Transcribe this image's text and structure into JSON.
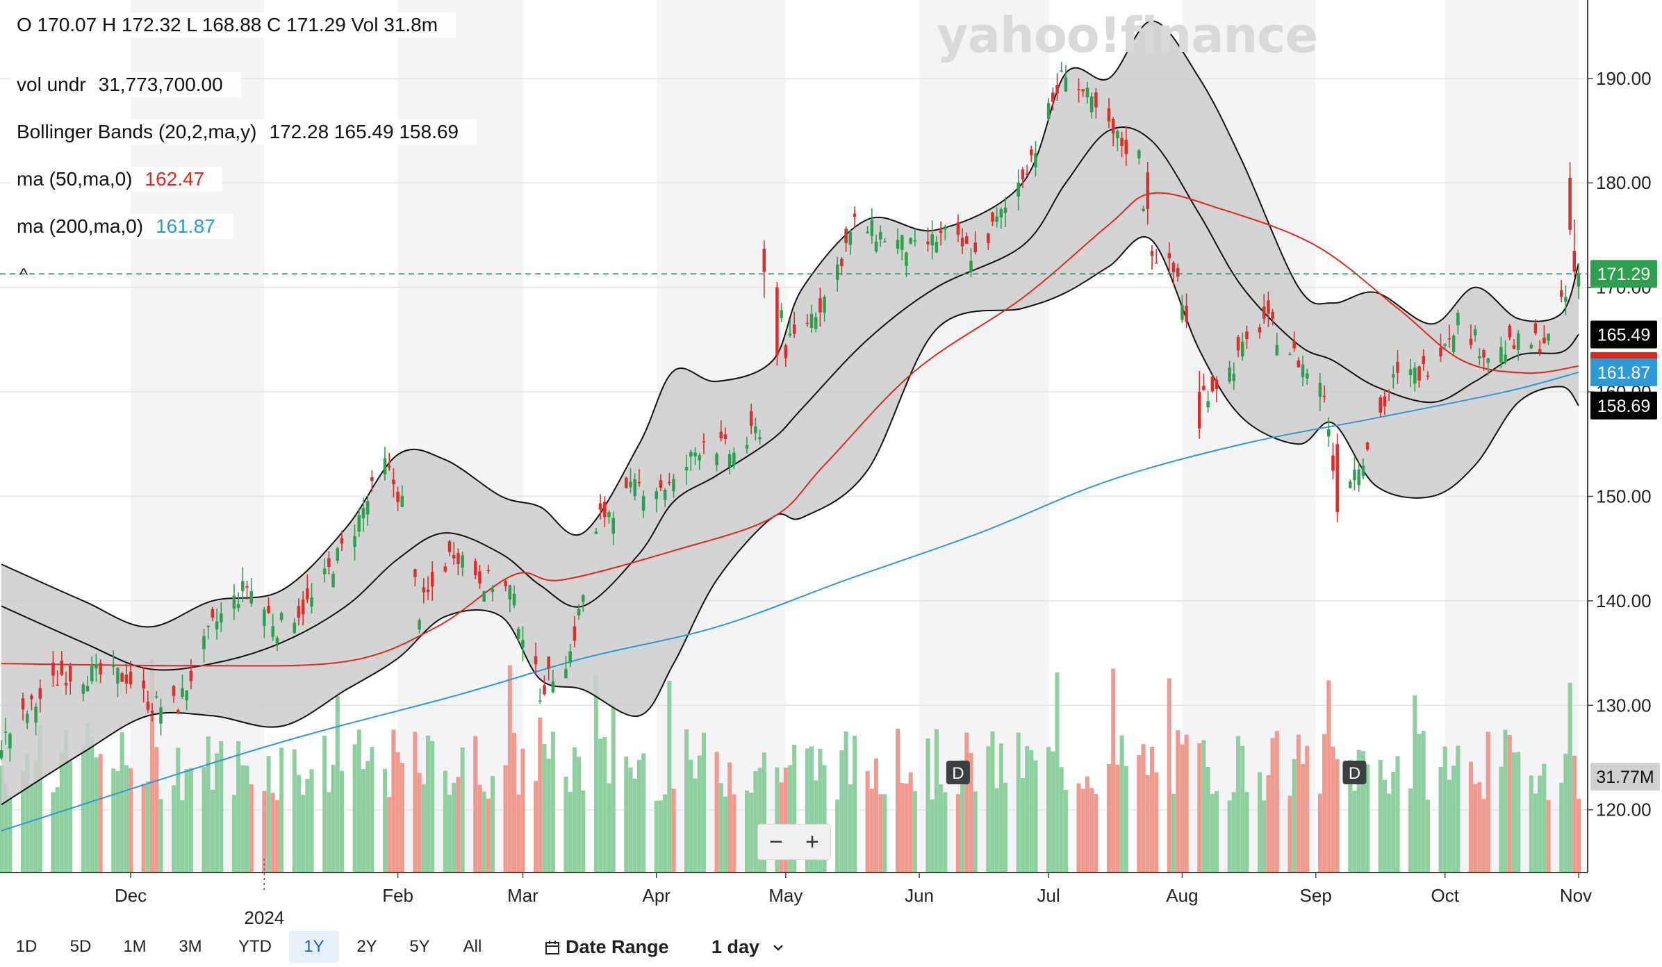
{
  "header": {
    "ohlc_text": "O 170.07   H 172.32   L 168.88   C 171.29   Vol 31.8m",
    "collapse_glyph": "^"
  },
  "legend": [
    {
      "label": "vol undr",
      "value": "31,773,700.00",
      "color": "#111111"
    },
    {
      "label": "Bollinger Bands (20,2,ma,y)",
      "value": "172.28 165.49 158.69",
      "color": "#111111"
    },
    {
      "label": "ma (50,ma,0)",
      "value": "162.47",
      "color": "#e0281e"
    },
    {
      "label": "ma (200,ma,0)",
      "value": "161.87",
      "color": "#2b9ad6"
    }
  ],
  "watermark": "yahoo!finance",
  "zoom": {
    "minus": "−",
    "plus": "+"
  },
  "toolbar": {
    "ranges": [
      "1D",
      "5D",
      "1M",
      "3M",
      "YTD",
      "1Y",
      "2Y",
      "5Y",
      "All"
    ],
    "active_range": "1Y",
    "date_range_label": "Date Range",
    "interval_label": "1 day",
    "calendar_icon": "calendar-icon",
    "chevron_icon": "chevron-down-icon"
  },
  "colors": {
    "up": "#2e9e4f",
    "down": "#d8312c",
    "up_vol": "#8fcf9f",
    "down_vol": "#ef9a8e",
    "band_fill": "#cdcdcd",
    "ma50": "#e0281e",
    "ma200": "#2b9ad6",
    "last_price_line": "#2e7d5b",
    "last_price_badge": "#2e9e4f"
  },
  "chart_data": {
    "type": "candlestick",
    "yaxis": {
      "ticks": [
        "120.00",
        "130.00",
        "140.00",
        "150.00",
        "160.00",
        "170.00",
        "180.00",
        "190.00"
      ],
      "ylim": [
        114,
        197.5
      ],
      "side": "right"
    },
    "xaxis": {
      "month_ticks": [
        "Dec",
        "Feb",
        "Mar",
        "Apr",
        "May",
        "Jun",
        "Jul",
        "Aug",
        "Sep",
        "Oct",
        "Nov"
      ],
      "year_tick": "2024",
      "range": [
        "2023-11-01",
        "2024-11-01"
      ]
    },
    "month_tick_dates": [
      "2023-12-01",
      "2024-02-01",
      "2024-03-01",
      "2024-04-01",
      "2024-05-01",
      "2024-06-01",
      "2024-07-01",
      "2024-08-01",
      "2024-09-01",
      "2024-10-01",
      "2024-11-01"
    ],
    "year_tick_date": "2024-01-01",
    "alt_shade_months": [
      "2023-12",
      "2024-02",
      "2024-04",
      "2024-06",
      "2024-08",
      "2024-10"
    ],
    "close_path": [
      [
        "2023-11-01",
        126.5
      ],
      [
        "2023-11-15",
        133.0
      ],
      [
        "2023-11-30",
        132.8
      ],
      [
        "2023-12-06",
        130.0
      ],
      [
        "2023-12-12",
        130.0
      ],
      [
        "2023-12-20",
        137.5
      ],
      [
        "2023-12-28",
        141.5
      ],
      [
        "2024-01-04",
        137.5
      ],
      [
        "2024-01-12",
        140.0
      ],
      [
        "2024-01-22",
        147.0
      ],
      [
        "2024-01-29",
        153.0
      ],
      [
        "2024-02-02",
        149.5
      ],
      [
        "2024-02-06",
        139.0
      ],
      [
        "2024-02-14",
        145.0
      ],
      [
        "2024-02-21",
        142.0
      ],
      [
        "2024-02-27",
        141.0
      ],
      [
        "2024-03-05",
        131.5
      ],
      [
        "2024-03-12",
        135.0
      ],
      [
        "2024-03-19",
        148.0
      ],
      [
        "2024-03-28",
        151.0
      ],
      [
        "2024-04-05",
        151.0
      ],
      [
        "2024-04-12",
        155.5
      ],
      [
        "2024-04-19",
        154.0
      ],
      [
        "2024-04-25",
        156.5
      ],
      [
        "2024-04-29",
        171.5
      ],
      [
        "2024-05-01",
        164.0
      ],
      [
        "2024-05-10",
        169.0
      ],
      [
        "2024-05-17",
        176.0
      ],
      [
        "2024-05-23",
        175.0
      ],
      [
        "2024-05-31",
        173.5
      ],
      [
        "2024-06-07",
        175.0
      ],
      [
        "2024-06-14",
        173.0
      ],
      [
        "2024-06-21",
        177.5
      ],
      [
        "2024-06-28",
        183.5
      ],
      [
        "2024-07-05",
        191.0
      ],
      [
        "2024-07-10",
        188.0
      ],
      [
        "2024-07-16",
        184.5
      ],
      [
        "2024-07-22",
        182.5
      ],
      [
        "2024-07-24",
        174.0
      ],
      [
        "2024-07-31",
        171.0
      ],
      [
        "2024-08-05",
        159.5
      ],
      [
        "2024-08-12",
        162.0
      ],
      [
        "2024-08-20",
        167.0
      ],
      [
        "2024-08-28",
        163.0
      ],
      [
        "2024-09-03",
        160.0
      ],
      [
        "2024-09-06",
        150.0
      ],
      [
        "2024-09-12",
        154.0
      ],
      [
        "2024-09-19",
        161.0
      ],
      [
        "2024-09-26",
        162.0
      ],
      [
        "2024-10-04",
        167.0
      ],
      [
        "2024-10-11",
        163.5
      ],
      [
        "2024-10-18",
        164.5
      ],
      [
        "2024-10-25",
        165.0
      ],
      [
        "2024-10-29",
        169.0
      ],
      [
        "2024-10-30",
        182.0
      ],
      [
        "2024-11-01",
        171.29
      ]
    ],
    "big_candles": [
      {
        "date": "2024-04-26",
        "o": 173.7,
        "h": 174.5,
        "l": 169.0,
        "c": 171.5
      },
      {
        "date": "2024-04-29",
        "o": 170.0,
        "h": 170.5,
        "l": 162.5,
        "c": 163.5
      },
      {
        "date": "2024-07-24",
        "o": 181.0,
        "h": 182.0,
        "l": 176.0,
        "c": 177.5
      },
      {
        "date": "2024-08-05",
        "o": 160.0,
        "h": 162.0,
        "l": 155.5,
        "c": 156.5
      },
      {
        "date": "2024-09-06",
        "o": 155.0,
        "h": 156.0,
        "l": 147.5,
        "c": 148.5
      },
      {
        "date": "2024-10-30",
        "o": 180.5,
        "h": 182.0,
        "l": 175.0,
        "c": 175.5
      },
      {
        "date": "2024-10-31",
        "o": 173.5,
        "h": 176.5,
        "l": 171.0,
        "c": 171.5
      },
      {
        "date": "2024-11-01",
        "o": 170.07,
        "h": 172.32,
        "l": 168.88,
        "c": 171.29
      }
    ],
    "bollinger_upper": [
      [
        "2023-11-01",
        143.5
      ],
      [
        "2023-11-20",
        140.0
      ],
      [
        "2023-12-05",
        137.5
      ],
      [
        "2023-12-20",
        140.0
      ],
      [
        "2024-01-05",
        141.0
      ],
      [
        "2024-01-20",
        147.0
      ],
      [
        "2024-02-01",
        154.0
      ],
      [
        "2024-02-12",
        153.5
      ],
      [
        "2024-02-25",
        150.0
      ],
      [
        "2024-03-05",
        149.0
      ],
      [
        "2024-03-15",
        146.5
      ],
      [
        "2024-03-28",
        155.0
      ],
      [
        "2024-04-05",
        162.0
      ],
      [
        "2024-04-15",
        161.0
      ],
      [
        "2024-04-28",
        163.0
      ],
      [
        "2024-05-05",
        170.0
      ],
      [
        "2024-05-20",
        176.5
      ],
      [
        "2024-06-05",
        175.5
      ],
      [
        "2024-06-25",
        180.0
      ],
      [
        "2024-07-05",
        190.5
      ],
      [
        "2024-07-15",
        190.0
      ],
      [
        "2024-07-25",
        195.5
      ],
      [
        "2024-08-05",
        190.0
      ],
      [
        "2024-08-15",
        182.0
      ],
      [
        "2024-08-28",
        170.0
      ],
      [
        "2024-09-05",
        168.5
      ],
      [
        "2024-09-15",
        169.5
      ],
      [
        "2024-09-28",
        166.5
      ],
      [
        "2024-10-08",
        170.0
      ],
      [
        "2024-10-18",
        167.0
      ],
      [
        "2024-10-28",
        167.5
      ],
      [
        "2024-11-01",
        172.28
      ]
    ],
    "bollinger_middle": [
      [
        "2023-11-01",
        139.5
      ],
      [
        "2023-11-20",
        136.0
      ],
      [
        "2023-12-05",
        133.5
      ],
      [
        "2023-12-20",
        134.0
      ],
      [
        "2024-01-05",
        136.0
      ],
      [
        "2024-01-20",
        139.5
      ],
      [
        "2024-02-01",
        144.0
      ],
      [
        "2024-02-12",
        146.5
      ],
      [
        "2024-02-25",
        144.5
      ],
      [
        "2024-03-05",
        141.5
      ],
      [
        "2024-03-15",
        139.5
      ],
      [
        "2024-03-28",
        144.5
      ],
      [
        "2024-04-05",
        149.5
      ],
      [
        "2024-04-15",
        152.0
      ],
      [
        "2024-04-28",
        155.5
      ],
      [
        "2024-05-05",
        158.5
      ],
      [
        "2024-05-20",
        165.0
      ],
      [
        "2024-06-05",
        170.0
      ],
      [
        "2024-06-25",
        174.0
      ],
      [
        "2024-07-05",
        180.0
      ],
      [
        "2024-07-15",
        185.0
      ],
      [
        "2024-07-25",
        184.0
      ],
      [
        "2024-08-05",
        177.0
      ],
      [
        "2024-08-15",
        170.0
      ],
      [
        "2024-08-28",
        164.5
      ],
      [
        "2024-09-05",
        163.0
      ],
      [
        "2024-09-15",
        160.5
      ],
      [
        "2024-09-28",
        159.0
      ],
      [
        "2024-10-08",
        161.0
      ],
      [
        "2024-10-18",
        163.5
      ],
      [
        "2024-10-28",
        163.8
      ],
      [
        "2024-11-01",
        165.49
      ]
    ],
    "bollinger_lower": [
      [
        "2023-11-01",
        120.5
      ],
      [
        "2023-11-20",
        125.5
      ],
      [
        "2023-12-05",
        129.0
      ],
      [
        "2023-12-20",
        129.0
      ],
      [
        "2024-01-05",
        128.0
      ],
      [
        "2024-01-20",
        131.5
      ],
      [
        "2024-02-01",
        134.5
      ],
      [
        "2024-02-12",
        138.5
      ],
      [
        "2024-02-25",
        138.5
      ],
      [
        "2024-03-05",
        132.5
      ],
      [
        "2024-03-15",
        131.5
      ],
      [
        "2024-03-28",
        129.0
      ],
      [
        "2024-04-05",
        134.0
      ],
      [
        "2024-04-15",
        142.0
      ],
      [
        "2024-04-28",
        148.0
      ],
      [
        "2024-05-05",
        148.0
      ],
      [
        "2024-05-20",
        152.5
      ],
      [
        "2024-06-05",
        166.0
      ],
      [
        "2024-06-25",
        168.0
      ],
      [
        "2024-07-05",
        169.5
      ],
      [
        "2024-07-15",
        172.0
      ],
      [
        "2024-07-25",
        174.5
      ],
      [
        "2024-08-05",
        164.0
      ],
      [
        "2024-08-15",
        157.5
      ],
      [
        "2024-08-28",
        155.0
      ],
      [
        "2024-09-05",
        157.0
      ],
      [
        "2024-09-15",
        151.0
      ],
      [
        "2024-09-28",
        150.0
      ],
      [
        "2024-10-08",
        153.0
      ],
      [
        "2024-10-18",
        159.0
      ],
      [
        "2024-10-28",
        160.5
      ],
      [
        "2024-11-01",
        158.69
      ]
    ],
    "ma50": [
      [
        "2023-11-01",
        134.0
      ],
      [
        "2023-12-15",
        133.8
      ],
      [
        "2024-01-20",
        134.2
      ],
      [
        "2024-02-10",
        137.5
      ],
      [
        "2024-02-28",
        142.5
      ],
      [
        "2024-03-10",
        142.0
      ],
      [
        "2024-04-05",
        144.8
      ],
      [
        "2024-04-28",
        148.0
      ],
      [
        "2024-05-10",
        153.0
      ],
      [
        "2024-05-31",
        162.0
      ],
      [
        "2024-06-25",
        169.0
      ],
      [
        "2024-07-15",
        176.0
      ],
      [
        "2024-07-25",
        179.0
      ],
      [
        "2024-08-10",
        177.5
      ],
      [
        "2024-09-01",
        174.0
      ],
      [
        "2024-09-20",
        168.0
      ],
      [
        "2024-10-05",
        163.0
      ],
      [
        "2024-10-20",
        161.8
      ],
      [
        "2024-11-01",
        162.47
      ]
    ],
    "ma200": [
      [
        "2023-11-01",
        118.0
      ],
      [
        "2024-01-01",
        126.0
      ],
      [
        "2024-02-15",
        131.0
      ],
      [
        "2024-03-15",
        134.5
      ],
      [
        "2024-04-15",
        137.5
      ],
      [
        "2024-05-15",
        142.0
      ],
      [
        "2024-06-15",
        146.5
      ],
      [
        "2024-07-15",
        151.5
      ],
      [
        "2024-08-15",
        155.0
      ],
      [
        "2024-09-15",
        157.5
      ],
      [
        "2024-10-15",
        160.0
      ],
      [
        "2024-11-01",
        161.87
      ]
    ],
    "dividend_markers": [
      {
        "date": "2024-06-10",
        "label": "D"
      },
      {
        "date": "2024-09-10",
        "label": "D"
      }
    ],
    "last_price": 171.29,
    "price_badges": [
      {
        "value": 171.29,
        "label": "171.29",
        "style": "green"
      },
      {
        "value": 165.49,
        "label": "165.49",
        "style": "black"
      },
      {
        "value": 162.47,
        "label": "",
        "style": "red"
      },
      {
        "value": 161.87,
        "label": "161.87",
        "style": "blue"
      },
      {
        "value": 158.69,
        "label": "158.69",
        "style": "black"
      }
    ],
    "volume": {
      "last": "31.77M",
      "max_visible_m": 42
    }
  }
}
